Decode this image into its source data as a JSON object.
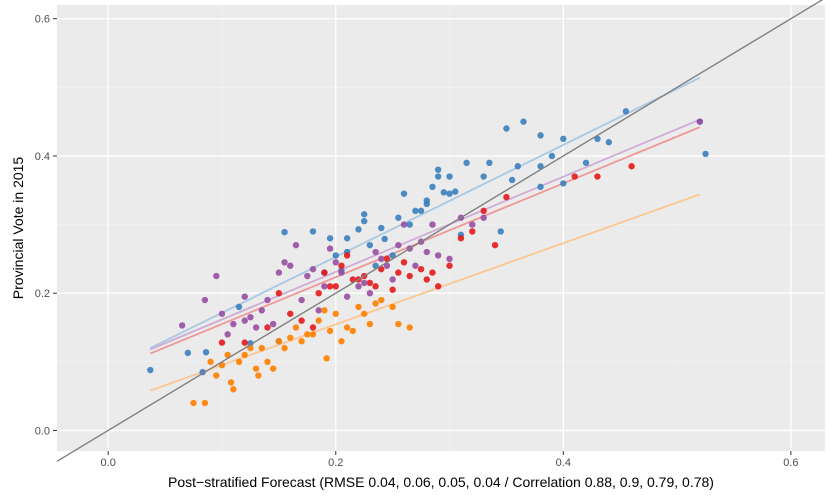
{
  "chart_data": {
    "type": "scatter",
    "title": "",
    "xlabel": "Post−stratified Forecast (RMSE 0.04, 0.06, 0.05, 0.04 / Correlation 0.88, 0.9, 0.79, 0.78)",
    "ylabel": "Provincial Vote in 2015",
    "xlim": [
      -0.045,
      0.63
    ],
    "ylim": [
      -0.03,
      0.62
    ],
    "x_ticks": [
      0.0,
      0.2,
      0.4,
      0.6
    ],
    "x_tick_labels": [
      "0.0",
      "0.2",
      "0.4",
      "0.6"
    ],
    "y_ticks": [
      0.0,
      0.2,
      0.4,
      0.6
    ],
    "y_tick_labels": [
      "0.0",
      "0.2",
      "0.4",
      "0.6"
    ],
    "grid": true,
    "legend": "none",
    "background": "#ebebeb",
    "reference_line": {
      "x": [
        -0.045,
        0.63
      ],
      "y": [
        -0.045,
        0.63
      ],
      "color": "#808080"
    },
    "series": [
      {
        "color": "#3a7fbf",
        "fit_color": "#a9c8e3",
        "fit_line": {
          "x": [
            0.037,
            0.52
          ],
          "y": [
            0.12,
            0.514
          ]
        },
        "points": [
          [
            0.037,
            0.088
          ],
          [
            0.07,
            0.113
          ],
          [
            0.083,
            0.085
          ],
          [
            0.086,
            0.114
          ],
          [
            0.115,
            0.18
          ],
          [
            0.125,
            0.127
          ],
          [
            0.15,
            0.13
          ],
          [
            0.155,
            0.289
          ],
          [
            0.18,
            0.29
          ],
          [
            0.19,
            0.23
          ],
          [
            0.195,
            0.28
          ],
          [
            0.2,
            0.255
          ],
          [
            0.205,
            0.233
          ],
          [
            0.21,
            0.26
          ],
          [
            0.21,
            0.28
          ],
          [
            0.22,
            0.293
          ],
          [
            0.225,
            0.305
          ],
          [
            0.225,
            0.315
          ],
          [
            0.23,
            0.27
          ],
          [
            0.235,
            0.24
          ],
          [
            0.24,
            0.295
          ],
          [
            0.243,
            0.279
          ],
          [
            0.25,
            0.255
          ],
          [
            0.255,
            0.31
          ],
          [
            0.26,
            0.345
          ],
          [
            0.265,
            0.3
          ],
          [
            0.27,
            0.32
          ],
          [
            0.275,
            0.32
          ],
          [
            0.28,
            0.33
          ],
          [
            0.28,
            0.335
          ],
          [
            0.285,
            0.355
          ],
          [
            0.29,
            0.38
          ],
          [
            0.29,
            0.37
          ],
          [
            0.295,
            0.347
          ],
          [
            0.3,
            0.345
          ],
          [
            0.3,
            0.37
          ],
          [
            0.305,
            0.348
          ],
          [
            0.31,
            0.285
          ],
          [
            0.315,
            0.39
          ],
          [
            0.33,
            0.37
          ],
          [
            0.335,
            0.39
          ],
          [
            0.345,
            0.29
          ],
          [
            0.35,
            0.44
          ],
          [
            0.355,
            0.365
          ],
          [
            0.36,
            0.385
          ],
          [
            0.365,
            0.45
          ],
          [
            0.38,
            0.355
          ],
          [
            0.38,
            0.385
          ],
          [
            0.38,
            0.43
          ],
          [
            0.39,
            0.4
          ],
          [
            0.4,
            0.425
          ],
          [
            0.4,
            0.36
          ],
          [
            0.42,
            0.39
          ],
          [
            0.43,
            0.425
          ],
          [
            0.44,
            0.42
          ],
          [
            0.455,
            0.465
          ],
          [
            0.52,
            0.45
          ],
          [
            0.525,
            0.403
          ]
        ]
      },
      {
        "color": "#e41a1c",
        "fit_color": "#ee9698",
        "fit_line": {
          "x": [
            0.037,
            0.52
          ],
          "y": [
            0.112,
            0.442
          ]
        },
        "points": [
          [
            0.1,
            0.128
          ],
          [
            0.12,
            0.128
          ],
          [
            0.14,
            0.15
          ],
          [
            0.15,
            0.2
          ],
          [
            0.16,
            0.17
          ],
          [
            0.17,
            0.16
          ],
          [
            0.18,
            0.15
          ],
          [
            0.185,
            0.2
          ],
          [
            0.19,
            0.23
          ],
          [
            0.195,
            0.21
          ],
          [
            0.2,
            0.21
          ],
          [
            0.205,
            0.24
          ],
          [
            0.21,
            0.255
          ],
          [
            0.215,
            0.22
          ],
          [
            0.22,
            0.22
          ],
          [
            0.225,
            0.225
          ],
          [
            0.23,
            0.215
          ],
          [
            0.235,
            0.21
          ],
          [
            0.24,
            0.235
          ],
          [
            0.245,
            0.25
          ],
          [
            0.25,
            0.205
          ],
          [
            0.255,
            0.23
          ],
          [
            0.26,
            0.245
          ],
          [
            0.265,
            0.225
          ],
          [
            0.275,
            0.235
          ],
          [
            0.28,
            0.22
          ],
          [
            0.285,
            0.23
          ],
          [
            0.29,
            0.21
          ],
          [
            0.3,
            0.24
          ],
          [
            0.31,
            0.28
          ],
          [
            0.32,
            0.29
          ],
          [
            0.33,
            0.32
          ],
          [
            0.34,
            0.27
          ],
          [
            0.35,
            0.34
          ],
          [
            0.41,
            0.37
          ],
          [
            0.43,
            0.37
          ],
          [
            0.46,
            0.385
          ]
        ]
      },
      {
        "color": "#984ea3",
        "fit_color": "#cfaad4",
        "fit_line": {
          "x": [
            0.037,
            0.52
          ],
          "y": [
            0.118,
            0.453
          ]
        },
        "points": [
          [
            0.065,
            0.153
          ],
          [
            0.085,
            0.19
          ],
          [
            0.095,
            0.225
          ],
          [
            0.1,
            0.17
          ],
          [
            0.105,
            0.14
          ],
          [
            0.11,
            0.155
          ],
          [
            0.12,
            0.195
          ],
          [
            0.12,
            0.16
          ],
          [
            0.125,
            0.165
          ],
          [
            0.13,
            0.15
          ],
          [
            0.135,
            0.175
          ],
          [
            0.14,
            0.19
          ],
          [
            0.145,
            0.155
          ],
          [
            0.15,
            0.23
          ],
          [
            0.155,
            0.245
          ],
          [
            0.16,
            0.24
          ],
          [
            0.165,
            0.27
          ],
          [
            0.17,
            0.19
          ],
          [
            0.175,
            0.225
          ],
          [
            0.18,
            0.235
          ],
          [
            0.185,
            0.175
          ],
          [
            0.19,
            0.21
          ],
          [
            0.195,
            0.265
          ],
          [
            0.2,
            0.245
          ],
          [
            0.205,
            0.23
          ],
          [
            0.21,
            0.195
          ],
          [
            0.22,
            0.21
          ],
          [
            0.225,
            0.215
          ],
          [
            0.23,
            0.2
          ],
          [
            0.235,
            0.26
          ],
          [
            0.24,
            0.25
          ],
          [
            0.245,
            0.24
          ],
          [
            0.25,
            0.22
          ],
          [
            0.255,
            0.27
          ],
          [
            0.26,
            0.3
          ],
          [
            0.265,
            0.265
          ],
          [
            0.27,
            0.24
          ],
          [
            0.275,
            0.275
          ],
          [
            0.28,
            0.26
          ],
          [
            0.285,
            0.3
          ],
          [
            0.29,
            0.255
          ],
          [
            0.3,
            0.25
          ],
          [
            0.31,
            0.31
          ],
          [
            0.32,
            0.3
          ],
          [
            0.33,
            0.31
          ],
          [
            0.52,
            0.45
          ]
        ]
      },
      {
        "color": "#ff7f00",
        "fit_color": "#fcc692",
        "fit_line": {
          "x": [
            0.037,
            0.52
          ],
          "y": [
            0.058,
            0.344
          ]
        },
        "points": [
          [
            0.075,
            0.04
          ],
          [
            0.085,
            0.04
          ],
          [
            0.09,
            0.1
          ],
          [
            0.095,
            0.08
          ],
          [
            0.1,
            0.095
          ],
          [
            0.105,
            0.11
          ],
          [
            0.108,
            0.07
          ],
          [
            0.11,
            0.06
          ],
          [
            0.115,
            0.1
          ],
          [
            0.12,
            0.11
          ],
          [
            0.125,
            0.12
          ],
          [
            0.13,
            0.09
          ],
          [
            0.132,
            0.08
          ],
          [
            0.135,
            0.12
          ],
          [
            0.14,
            0.1
          ],
          [
            0.145,
            0.09
          ],
          [
            0.15,
            0.13
          ],
          [
            0.155,
            0.12
          ],
          [
            0.16,
            0.135
          ],
          [
            0.165,
            0.15
          ],
          [
            0.17,
            0.13
          ],
          [
            0.175,
            0.14
          ],
          [
            0.18,
            0.14
          ],
          [
            0.185,
            0.16
          ],
          [
            0.19,
            0.175
          ],
          [
            0.192,
            0.105
          ],
          [
            0.195,
            0.145
          ],
          [
            0.2,
            0.17
          ],
          [
            0.205,
            0.13
          ],
          [
            0.21,
            0.15
          ],
          [
            0.215,
            0.145
          ],
          [
            0.22,
            0.18
          ],
          [
            0.225,
            0.17
          ],
          [
            0.23,
            0.155
          ],
          [
            0.235,
            0.185
          ],
          [
            0.24,
            0.19
          ],
          [
            0.25,
            0.18
          ],
          [
            0.255,
            0.155
          ],
          [
            0.265,
            0.15
          ]
        ]
      }
    ]
  }
}
